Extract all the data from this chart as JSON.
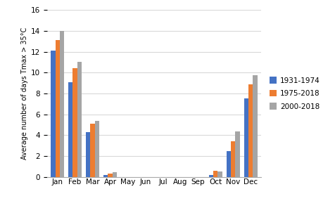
{
  "months": [
    "Jan",
    "Feb",
    "Mar",
    "Apr",
    "May",
    "Jun",
    "Jul",
    "Aug",
    "Sep",
    "Oct",
    "Nov",
    "Dec"
  ],
  "series": {
    "1931-1974": [
      12.1,
      9.1,
      4.3,
      0.2,
      0.0,
      0.0,
      0.0,
      0.0,
      0.0,
      0.2,
      2.5,
      7.5
    ],
    "1975-2018": [
      13.1,
      10.45,
      5.1,
      0.3,
      0.0,
      0.0,
      0.0,
      0.0,
      0.0,
      0.6,
      3.4,
      8.9
    ],
    "2000-2018": [
      14.0,
      11.0,
      5.4,
      0.45,
      0.0,
      0.0,
      0.0,
      0.0,
      0.0,
      0.55,
      4.35,
      9.75
    ]
  },
  "colors": {
    "1931-1974": "#4472C4",
    "1975-2018": "#ED7D31",
    "2000-2018": "#A5A5A5"
  },
  "ylabel": "Average number of days Tmax > 35°C",
  "ylim": [
    0,
    16
  ],
  "yticks": [
    0,
    2,
    4,
    6,
    8,
    10,
    12,
    14,
    16
  ],
  "bar_width": 0.25,
  "legend_labels": [
    "1931-1974",
    "1975-2018",
    "2000-2018"
  ]
}
